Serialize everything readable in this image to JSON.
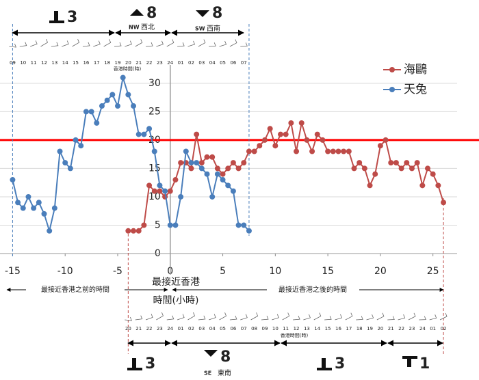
{
  "chart_data": {
    "type": "line",
    "xlim": [
      -16.2,
      27.3
    ],
    "ylim": [
      0,
      36
    ],
    "xticks": [
      -15,
      -10,
      -5,
      0,
      5,
      10,
      15,
      20,
      25
    ],
    "yticks": [
      0,
      5,
      10,
      15,
      20,
      25,
      30
    ],
    "x_label": [
      "最接近香港",
      "時間(小時)"
    ],
    "legend": "top-right",
    "reference_line": {
      "value": 20,
      "color": "#ff0000"
    },
    "series": [
      {
        "name": "海鷗",
        "color": "#be4b48",
        "x": [
          -4,
          -3.5,
          -3,
          -2.5,
          -2,
          -1.5,
          -1,
          -0.5,
          0,
          0.5,
          1,
          1.5,
          2,
          2.5,
          3,
          3.5,
          4,
          4.5,
          5,
          5.5,
          6,
          6.5,
          7,
          7.5,
          8,
          8.5,
          9,
          9.5,
          10,
          10.5,
          11,
          11.5,
          12,
          12.5,
          13,
          13.5,
          14,
          14.5,
          15,
          15.5,
          16,
          16.5,
          17,
          17.5,
          18,
          18.5,
          19,
          19.5,
          20,
          20.5,
          21,
          21.5,
          22,
          22.5,
          23,
          23.5,
          24,
          24.5,
          25,
          25.5,
          26
        ],
        "values": [
          4,
          4,
          4,
          5,
          12,
          11,
          11,
          10,
          11,
          13,
          16,
          16,
          15,
          21,
          16,
          17,
          17,
          15,
          14,
          15,
          16,
          15,
          16,
          18,
          18,
          19,
          20,
          22,
          19,
          21,
          21,
          23,
          18,
          23,
          20,
          18,
          21,
          20,
          18,
          18,
          18,
          18,
          18,
          15,
          16,
          15,
          12,
          14,
          19,
          20,
          16,
          16,
          15,
          16,
          15,
          16,
          12,
          15,
          14,
          12,
          9
        ]
      },
      {
        "name": "天兔",
        "color": "#4a7ebb",
        "x": [
          -15,
          -14.5,
          -14,
          -13.5,
          -13,
          -12.5,
          -12,
          -11.5,
          -11,
          -10.5,
          -10,
          -9.5,
          -9,
          -8.5,
          -8,
          -7.5,
          -7,
          -6.5,
          -6,
          -5.5,
          -5,
          -4.5,
          -4,
          -3.5,
          -3,
          -2.5,
          -2,
          -1.5,
          -1,
          -0.5,
          0,
          0.5,
          1,
          1.5,
          2,
          2.5,
          3,
          3.5,
          4,
          4.5,
          5,
          5.5,
          6,
          6.5,
          7,
          7.5
        ],
        "values": [
          13,
          9,
          8,
          10,
          8,
          9,
          7,
          4,
          8,
          18,
          16,
          15,
          20,
          19,
          25,
          25,
          23,
          26,
          27,
          28,
          26,
          31,
          28,
          26,
          21,
          21,
          22,
          18,
          12,
          11,
          5,
          5,
          10,
          18,
          16,
          16,
          15,
          14,
          10,
          14,
          13,
          12,
          11,
          5,
          5,
          4
        ]
      }
    ]
  },
  "top": {
    "hours": [
      "09",
      "10",
      "11",
      "12",
      "13",
      "14",
      "15",
      "16",
      "17",
      "18",
      "19",
      "20",
      "21",
      "22",
      "23",
      "24",
      "01",
      "02",
      "03",
      "04",
      "05",
      "06",
      "07"
    ],
    "hours_title": "香港時間(時)",
    "signals": [
      {
        "number": "3"
      },
      {
        "number": "8",
        "dir_en": "NW",
        "dir_zh": "西北"
      },
      {
        "number": "8",
        "dir_en": "SW",
        "dir_zh": "西南"
      }
    ]
  },
  "bottom": {
    "hours": [
      "20",
      "21",
      "22",
      "23",
      "24",
      "01",
      "02",
      "03",
      "04",
      "05",
      "06",
      "07",
      "08",
      "09",
      "10",
      "11",
      "12",
      "13",
      "14",
      "15",
      "16",
      "17",
      "18",
      "19",
      "20",
      "21",
      "22",
      "23",
      "24",
      "01",
      "02"
    ],
    "hours_title": "香港時間(時)",
    "before": "最接近香港之前的時間",
    "after": "最接近香港之後的時間",
    "signals": [
      {
        "number": "3"
      },
      {
        "number": "8",
        "dir_en": "SE",
        "dir_zh": "東南"
      },
      {
        "number": "3"
      },
      {
        "number": "1"
      }
    ]
  }
}
